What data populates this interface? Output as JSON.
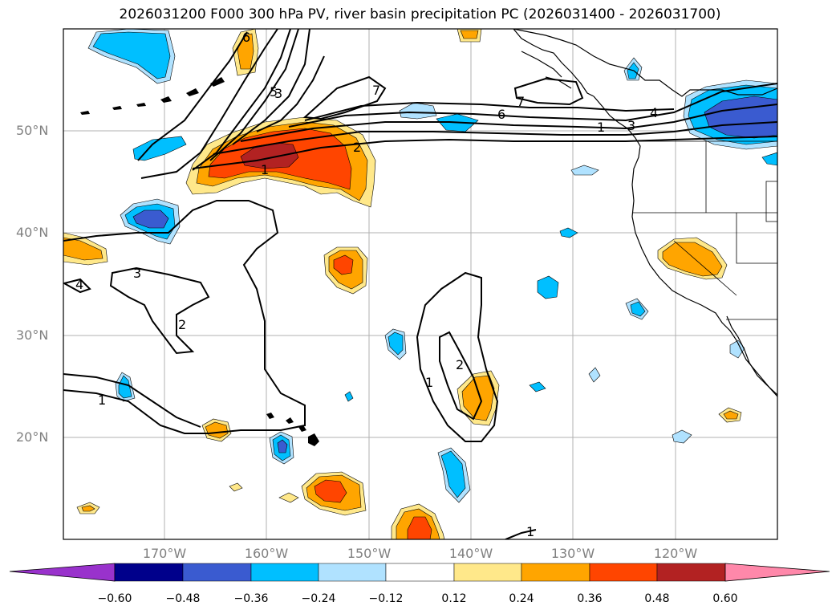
{
  "title": "2026031200 F000 300 hPa PV, river basin precipitation PC (2026031400 - 2026031700)",
  "lat_labels": [
    "50°N",
    "40°N",
    "30°N",
    "20°N"
  ],
  "lon_labels": [
    "170°W",
    "160°W",
    "150°W",
    "140°W",
    "130°W",
    "120°W"
  ],
  "colorbar": {
    "ticks": [
      "−0.60",
      "−0.48",
      "−0.36",
      "−0.24",
      "−0.12",
      "0.12",
      "0.24",
      "0.36",
      "0.48",
      "0.60"
    ],
    "colors": [
      "#9932cc",
      "#00008b",
      "#3a5bd0",
      "#00bfff",
      "#b0e2ff",
      "#ffffff",
      "#ffe88a",
      "#ffa500",
      "#ff4500",
      "#b22222",
      "#ff88aa"
    ]
  },
  "contour_labels": [
    "1",
    "2",
    "3",
    "4",
    "5",
    "6",
    "7",
    "1",
    "2",
    "3",
    "1",
    "2",
    "1",
    "3",
    "4",
    "6",
    "7",
    "1"
  ]
}
